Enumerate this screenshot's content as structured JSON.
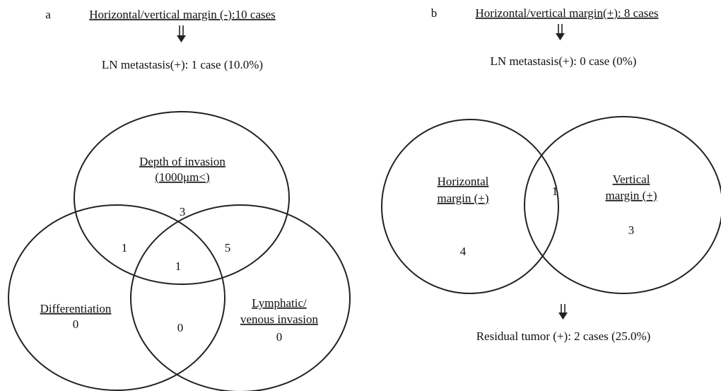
{
  "panel_a": {
    "label": "a",
    "heading": "Horizontal/vertical margin (-):10 cases",
    "result": "LN metastasis(+): 1 case (10.0%)",
    "sets": [
      {
        "label_lines": [
          "Depth of invasion",
          "(1000μm<)"
        ],
        "count": 3
      },
      {
        "label_lines": [
          "Differentiation"
        ],
        "count": 0
      },
      {
        "label_lines": [
          "Lymphatic/",
          "venous invasion"
        ],
        "count": 0
      }
    ],
    "overlaps": [
      1,
      5,
      1,
      0
    ]
  },
  "panel_b": {
    "label": "b",
    "heading": "Horizontal/vertical margin(+): 8 cases",
    "result": "LN metastasis(+): 0 case (0%)",
    "sets": [
      {
        "label_lines": [
          "Horizontal",
          "margin (+)"
        ],
        "count": 4
      },
      {
        "label_lines": [
          "Vertical",
          "margin (+)"
        ],
        "count": 3
      }
    ],
    "overlaps": [
      1
    ],
    "outcome": "Residual tumor (+): 2 cases (25.0%)"
  }
}
